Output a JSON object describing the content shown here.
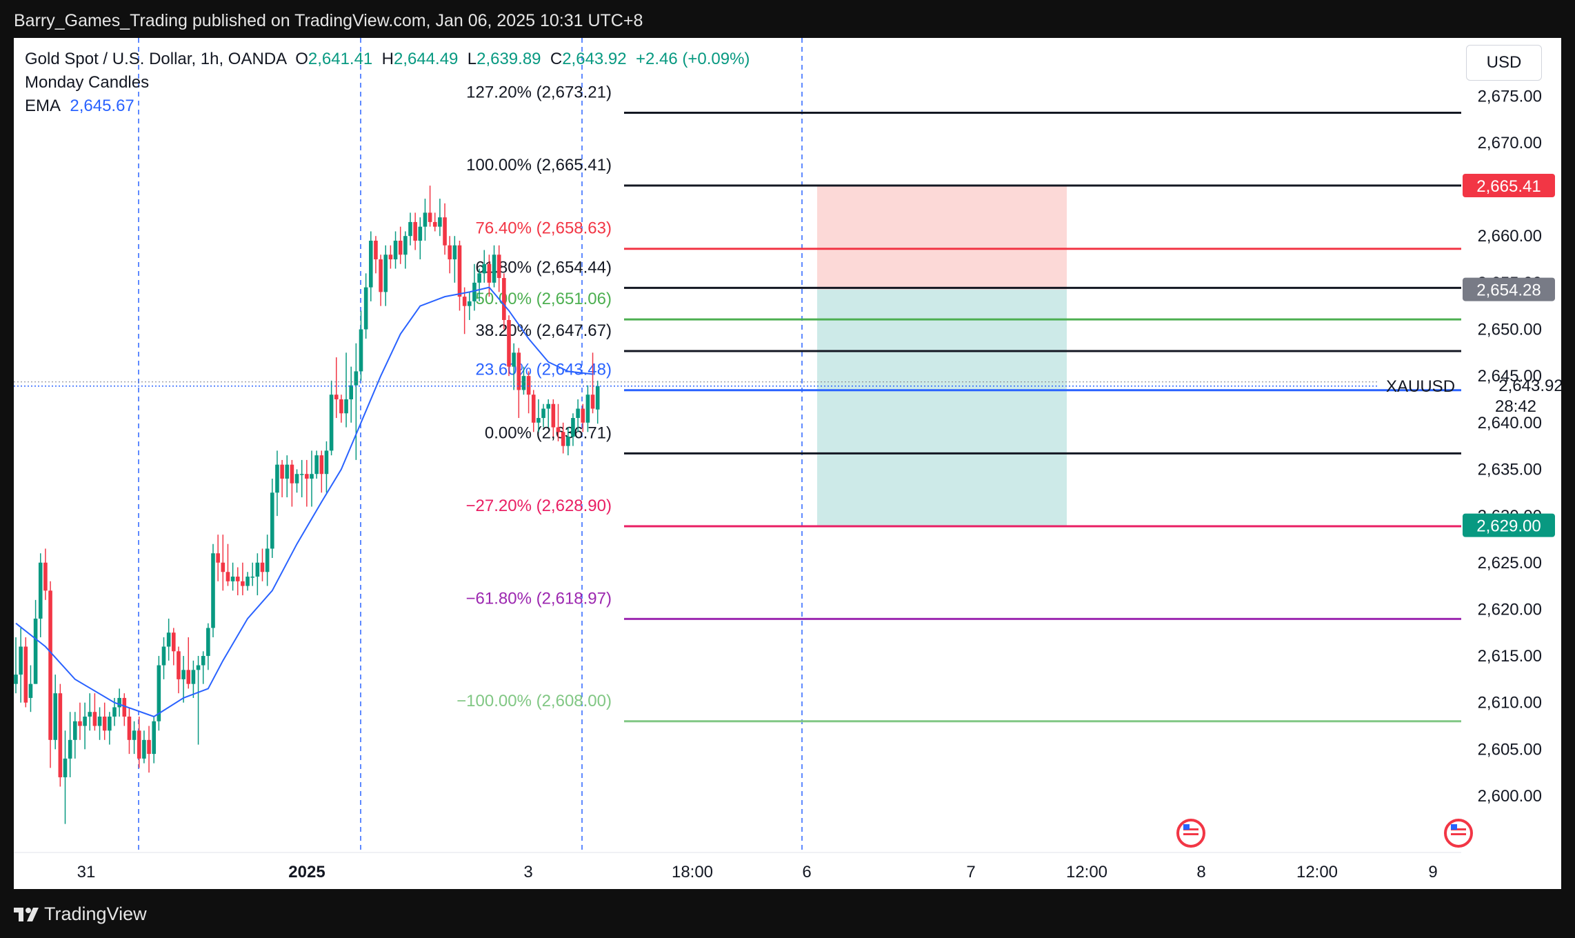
{
  "header": {
    "published_by": "Barry_Games_Trading published on TradingView.com, Jan 06, 2025 10:31 UTC+8"
  },
  "legend": {
    "symbol": "Gold Spot / U.S. Dollar, 1h, OANDA",
    "o_label": "O",
    "o_value": "2,641.41",
    "h_label": "H",
    "h_value": "2,644.49",
    "l_label": "L",
    "l_value": "2,639.89",
    "c_label": "C",
    "c_value": "2,643.92",
    "change": "+2.46 (+0.09%)",
    "indicator1": "Monday Candles",
    "ema_label": "EMA",
    "ema_value": "2,645.67"
  },
  "currency_button": "USD",
  "footer": {
    "brand": "TradingView"
  },
  "colors": {
    "up": "#089981",
    "down": "#f23645",
    "ema": "#2962ff",
    "stop_zone": "#fcd9d7",
    "target_zone": "#cdeae8",
    "fib_black": "#131722",
    "fib_red": "#f23645",
    "fib_green": "#4caf50",
    "fib_pink": "#e91e63",
    "fib_purple": "#9c27b0",
    "fib_lightgreen": "#81c784"
  },
  "chart_data": {
    "type": "candlestick",
    "symbol": "XAUUSD",
    "timeframe": "1h",
    "y_range": [
      2596,
      2683
    ],
    "y_ticks": [
      "2,600.00",
      "2,605.00",
      "2,610.00",
      "2,615.00",
      "2,620.00",
      "2,625.00",
      "2,630.00",
      "2,635.00",
      "2,640.00",
      "2,645.00",
      "2,650.00",
      "2,655.00",
      "2,660.00",
      "2,665.00",
      "2,670.00",
      "2,675.00"
    ],
    "x_ticks": [
      "31",
      "2025",
      "3",
      "18:00",
      "6",
      "7",
      "12:00",
      "8",
      "12:00",
      "9"
    ],
    "candles": [
      [
        2612.0,
        2617.0,
        2611.0,
        2613.0
      ],
      [
        2613.0,
        2618.0,
        2610.0,
        2616.0
      ],
      [
        2616.0,
        2617.0,
        2609.5,
        2610.0
      ],
      [
        2610.5,
        2614.0,
        2609.0,
        2612.0
      ],
      [
        2612.0,
        2621.0,
        2612.0,
        2619.0
      ],
      [
        2619.0,
        2626.0,
        2617.0,
        2625.0
      ],
      [
        2625.0,
        2626.5,
        2621.0,
        2622.0
      ],
      [
        2622.0,
        2623.0,
        2603.0,
        2606.0
      ],
      [
        2606.0,
        2613.0,
        2605.0,
        2611.0
      ],
      [
        2611.0,
        2612.0,
        2601.0,
        2602.0
      ],
      [
        2602.0,
        2607.0,
        2597.0,
        2604.0
      ],
      [
        2604.0,
        2609.0,
        2602.0,
        2606.0
      ],
      [
        2606.0,
        2609.0,
        2604.0,
        2608.0
      ],
      [
        2608.0,
        2610.0,
        2606.0,
        2607.5
      ],
      [
        2607.5,
        2610.0,
        2605.0,
        2608.5
      ],
      [
        2608.5,
        2611.0,
        2607.0,
        2609.0
      ],
      [
        2609.0,
        2611.0,
        2607.0,
        2607.5
      ],
      [
        2607.5,
        2609.5,
        2606.0,
        2608.5
      ],
      [
        2608.5,
        2610.0,
        2606.0,
        2607.0
      ],
      [
        2607.0,
        2609.0,
        2605.5,
        2608.5
      ],
      [
        2608.5,
        2610.5,
        2607.5,
        2609.5
      ],
      [
        2609.5,
        2611.5,
        2608.5,
        2610.5
      ],
      [
        2610.5,
        2611.0,
        2607.5,
        2608.5
      ],
      [
        2608.5,
        2609.5,
        2604.5,
        2606.0
      ],
      [
        2606.0,
        2608.0,
        2604.5,
        2607.0
      ],
      [
        2607.0,
        2608.5,
        2603.0,
        2604.0
      ],
      [
        2604.0,
        2607.0,
        2603.5,
        2606.0
      ],
      [
        2606.0,
        2607.5,
        2602.5,
        2604.5
      ],
      [
        2604.5,
        2608.5,
        2603.5,
        2608.0
      ],
      [
        2608.0,
        2615.0,
        2607.0,
        2614.0
      ],
      [
        2614.0,
        2617.0,
        2612.5,
        2616.0
      ],
      [
        2616.0,
        2619.0,
        2614.5,
        2617.5
      ],
      [
        2617.5,
        2618.0,
        2614.0,
        2615.5
      ],
      [
        2615.5,
        2616.0,
        2611.0,
        2612.5
      ],
      [
        2612.5,
        2615.0,
        2610.0,
        2613.5
      ],
      [
        2613.5,
        2617.0,
        2611.5,
        2612.0
      ],
      [
        2612.0,
        2614.5,
        2610.5,
        2613.5
      ],
      [
        2613.5,
        2615.0,
        2605.5,
        2614.0
      ],
      [
        2614.0,
        2615.5,
        2612.0,
        2615.0
      ],
      [
        2615.0,
        2618.5,
        2613.5,
        2618.0
      ],
      [
        2618.0,
        2627.0,
        2617.0,
        2626.0
      ],
      [
        2626.0,
        2628.0,
        2623.0,
        2625.0
      ],
      [
        2625.0,
        2628.0,
        2622.0,
        2624.0
      ],
      [
        2624.0,
        2627.0,
        2622.5,
        2623.0
      ],
      [
        2623.0,
        2625.0,
        2622.0,
        2623.5
      ],
      [
        2623.5,
        2624.5,
        2621.5,
        2623.0
      ],
      [
        2623.0,
        2625.0,
        2621.5,
        2622.5
      ],
      [
        2622.5,
        2624.0,
        2622.0,
        2623.5
      ],
      [
        2623.5,
        2625.0,
        2622.5,
        2623.5
      ],
      [
        2623.5,
        2626.0,
        2621.5,
        2625.0
      ],
      [
        2625.0,
        2626.5,
        2623.0,
        2624.0
      ],
      [
        2624.0,
        2628.0,
        2622.5,
        2626.5
      ],
      [
        2626.5,
        2634.0,
        2625.5,
        2632.5
      ],
      [
        2632.5,
        2637.0,
        2630.0,
        2635.5
      ],
      [
        2635.5,
        2636.0,
        2632.0,
        2634.0
      ],
      [
        2634.0,
        2636.5,
        2632.0,
        2635.5
      ],
      [
        2635.5,
        2636.0,
        2631.0,
        2633.5
      ],
      [
        2633.5,
        2635.0,
        2632.5,
        2634.5
      ],
      [
        2634.5,
        2636.0,
        2632.0,
        2634.5
      ],
      [
        2634.5,
        2636.0,
        2631.0,
        2634.0
      ],
      [
        2634.0,
        2637.0,
        2631.0,
        2634.5
      ],
      [
        2634.5,
        2637.0,
        2634.0,
        2636.5
      ],
      [
        2636.5,
        2637.0,
        2632.5,
        2634.5
      ],
      [
        2634.5,
        2638.0,
        2632.5,
        2637.0
      ],
      [
        2637.0,
        2644.5,
        2636.5,
        2643.0
      ],
      [
        2643.0,
        2647.0,
        2640.5,
        2642.5
      ],
      [
        2642.5,
        2643.0,
        2640.0,
        2641.0
      ],
      [
        2641.0,
        2647.5,
        2639.5,
        2642.5
      ],
      [
        2642.5,
        2646.0,
        2640.0,
        2644.0
      ],
      [
        2644.0,
        2648.5,
        2636.0,
        2645.5
      ],
      [
        2645.5,
        2652.0,
        2644.5,
        2650.0
      ],
      [
        2650.0,
        2656.0,
        2649.0,
        2654.5
      ],
      [
        2654.5,
        2660.5,
        2653.0,
        2659.5
      ],
      [
        2659.5,
        2660.0,
        2656.0,
        2657.5
      ],
      [
        2657.5,
        2658.0,
        2652.5,
        2654.0
      ],
      [
        2654.0,
        2659.0,
        2652.5,
        2658.0
      ],
      [
        2658.0,
        2659.0,
        2656.5,
        2657.5
      ],
      [
        2657.5,
        2660.5,
        2656.5,
        2659.5
      ],
      [
        2659.5,
        2661.0,
        2657.0,
        2658.0
      ],
      [
        2658.0,
        2660.5,
        2656.5,
        2660.0
      ],
      [
        2660.0,
        2662.5,
        2659.0,
        2661.5
      ],
      [
        2661.5,
        2662.5,
        2658.5,
        2659.5
      ],
      [
        2659.5,
        2662.0,
        2657.5,
        2661.0
      ],
      [
        2661.0,
        2664.0,
        2659.5,
        2662.5
      ],
      [
        2662.5,
        2665.4,
        2661.0,
        2661.5
      ],
      [
        2661.5,
        2662.5,
        2660.5,
        2661.0
      ],
      [
        2661.0,
        2664.0,
        2660.0,
        2662.0
      ],
      [
        2662.0,
        2663.5,
        2658.0,
        2659.0
      ],
      [
        2659.0,
        2660.0,
        2656.0,
        2657.5
      ],
      [
        2657.5,
        2660.0,
        2655.0,
        2659.0
      ],
      [
        2659.0,
        2659.5,
        2652.0,
        2653.5
      ],
      [
        2653.5,
        2654.5,
        2649.5,
        2652.5
      ],
      [
        2652.5,
        2654.0,
        2651.0,
        2653.0
      ],
      [
        2653.0,
        2657.0,
        2652.0,
        2655.0
      ],
      [
        2655.0,
        2656.5,
        2653.0,
        2656.0
      ],
      [
        2656.0,
        2658.5,
        2655.0,
        2657.0
      ],
      [
        2657.0,
        2658.0,
        2653.5,
        2655.0
      ],
      [
        2655.0,
        2659.0,
        2654.5,
        2658.0
      ],
      [
        2658.0,
        2659.0,
        2654.0,
        2655.5
      ],
      [
        2655.5,
        2656.0,
        2650.0,
        2651.0
      ],
      [
        2651.0,
        2651.5,
        2645.0,
        2646.0
      ],
      [
        2646.0,
        2648.5,
        2643.5,
        2647.5
      ],
      [
        2647.5,
        2648.0,
        2640.5,
        2643.5
      ],
      [
        2643.5,
        2646.0,
        2643.0,
        2645.0
      ],
      [
        2645.0,
        2645.5,
        2641.0,
        2643.0
      ],
      [
        2643.0,
        2643.5,
        2639.0,
        2640.0
      ],
      [
        2640.0,
        2642.5,
        2639.0,
        2640.5
      ],
      [
        2640.5,
        2642.0,
        2639.5,
        2641.5
      ],
      [
        2641.5,
        2642.5,
        2639.5,
        2642.0
      ],
      [
        2642.0,
        2642.5,
        2638.5,
        2639.5
      ],
      [
        2639.5,
        2642.0,
        2638.0,
        2639.0
      ],
      [
        2639.0,
        2640.0,
        2636.7,
        2637.5
      ],
      [
        2637.5,
        2639.5,
        2636.5,
        2638.5
      ],
      [
        2638.5,
        2641.0,
        2637.5,
        2640.5
      ],
      [
        2640.5,
        2642.5,
        2639.0,
        2641.5
      ],
      [
        2641.5,
        2642.0,
        2639.0,
        2640.0
      ],
      [
        2640.0,
        2644.0,
        2639.0,
        2643.0
      ],
      [
        2643.0,
        2647.5,
        2641.0,
        2641.5
      ],
      [
        2641.41,
        2644.49,
        2639.89,
        2643.92
      ]
    ],
    "ema": [
      [
        0,
        2618.5
      ],
      [
        6,
        2616.0
      ],
      [
        12,
        2612.5
      ],
      [
        20,
        2610.0
      ],
      [
        28,
        2608.5
      ],
      [
        34,
        2610.5
      ],
      [
        39,
        2611.5
      ],
      [
        42,
        2614.5
      ],
      [
        47,
        2619.0
      ],
      [
        52,
        2622.0
      ],
      [
        57,
        2627.0
      ],
      [
        62,
        2631.5
      ],
      [
        66,
        2635.0
      ],
      [
        70,
        2640.0
      ],
      [
        74,
        2645.0
      ],
      [
        78,
        2649.5
      ],
      [
        82,
        2652.5
      ],
      [
        87,
        2653.5
      ],
      [
        92,
        2654.0
      ],
      [
        96,
        2654.5
      ],
      [
        100,
        2652.0
      ],
      [
        104,
        2649.0
      ],
      [
        108,
        2646.5
      ],
      [
        112,
        2645.5
      ],
      [
        117,
        2645.2
      ]
    ],
    "fib_levels": [
      {
        "label": "127.20% (2,673.21)",
        "value": 2673.21,
        "color": "#131722"
      },
      {
        "label": "100.00% (2,665.41)",
        "value": 2665.41,
        "color": "#131722"
      },
      {
        "label": "76.40% (2,658.63)",
        "value": 2658.63,
        "color": "#f23645"
      },
      {
        "label": "61.80% (2,654.44)",
        "value": 2654.44,
        "color": "#131722"
      },
      {
        "label": "50.00% (2,651.06)",
        "value": 2651.06,
        "color": "#4caf50"
      },
      {
        "label": "38.20% (2,647.67)",
        "value": 2647.67,
        "color": "#131722"
      },
      {
        "label": "23.60% (2,643.48)",
        "value": 2643.48,
        "color": "#2962ff"
      },
      {
        "label": "0.00% (2,636.71)",
        "value": 2636.71,
        "color": "#131722"
      },
      {
        "label": "−27.20% (2,628.90)",
        "value": 2628.9,
        "color": "#e91e63"
      },
      {
        "label": "−61.80% (2,618.97)",
        "value": 2618.97,
        "color": "#9c27b0"
      },
      {
        "label": "−100.00% (2,608.00)",
        "value": 2608.0,
        "color": "#81c784"
      }
    ],
    "top_line": 2682.5,
    "position": {
      "entry": 2654.28,
      "stop": 2665.41,
      "target": 2629.0
    },
    "price_labels": [
      {
        "text": "2,665.41",
        "value": 2665.41,
        "color": "#f23645"
      },
      {
        "text": "2,654.28",
        "value": 2654.28,
        "color": "#787b86"
      },
      {
        "text": "2,629.00",
        "value": 2629.0,
        "color": "#089981"
      }
    ],
    "current": {
      "symbol": "XAUUSD",
      "price": "2,643.92",
      "countdown": "28:42",
      "value": 2643.92
    }
  }
}
